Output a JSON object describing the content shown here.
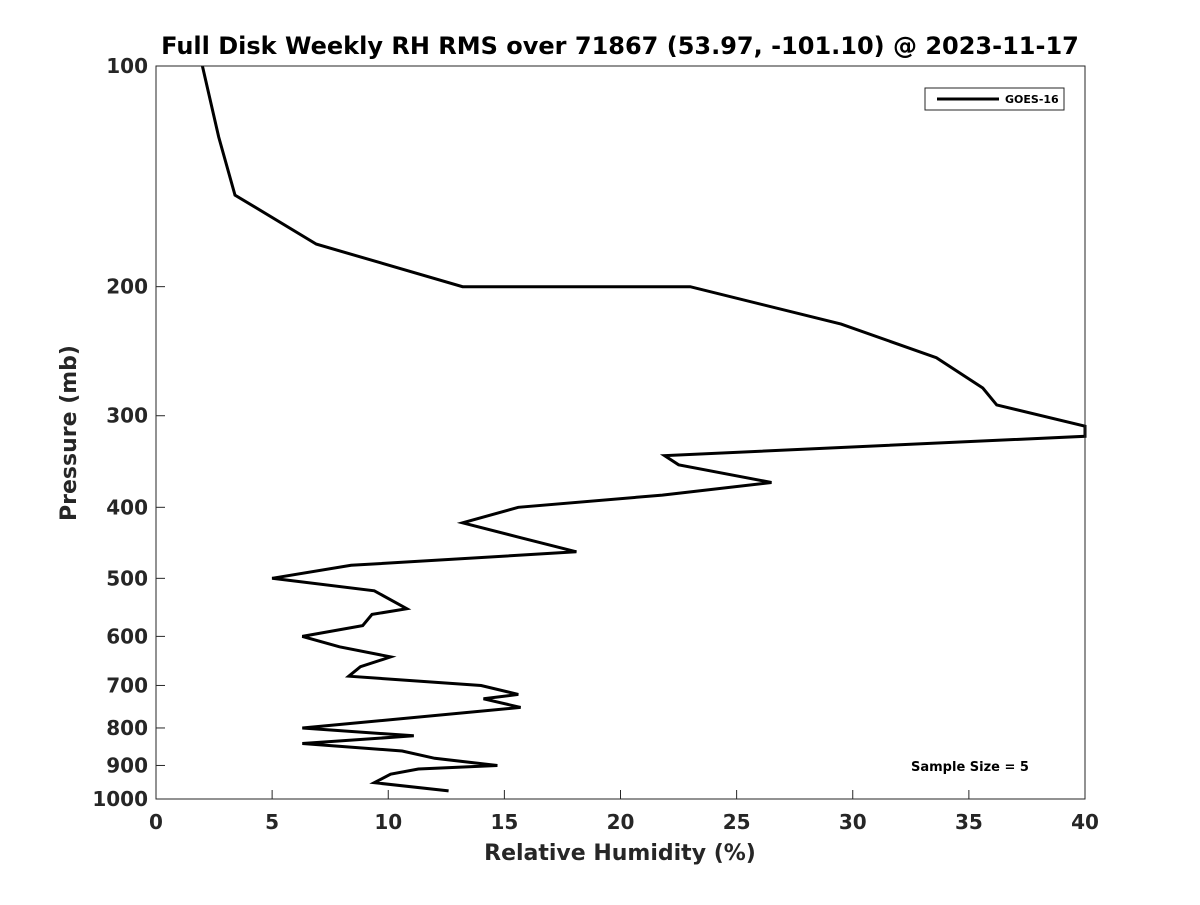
{
  "chart_data": {
    "type": "line",
    "title": "Full Disk Weekly RH RMS over 71867 (53.97, -101.10) @ 2023-11-17",
    "xlabel": "Relative Humidity (%)",
    "ylabel": "Pressure (mb)",
    "xlim": [
      0,
      40
    ],
    "ylim": [
      100,
      1000
    ],
    "y_scale": "log",
    "y_inverted": true,
    "x_ticks": [
      0,
      5,
      10,
      15,
      20,
      25,
      30,
      35,
      40
    ],
    "y_ticks": [
      100,
      200,
      300,
      400,
      500,
      600,
      700,
      800,
      900,
      1000
    ],
    "grid": false,
    "legend_position": "top-right",
    "annotation": "Sample Size = 5",
    "series": [
      {
        "name": "GOES-16",
        "color": "#000000",
        "points": [
          [
            2.0,
            100
          ],
          [
            2.7,
            125
          ],
          [
            3.4,
            150
          ],
          [
            6.9,
            175
          ],
          [
            13.2,
            200
          ],
          [
            23.0,
            200
          ],
          [
            29.5,
            225
          ],
          [
            33.6,
            250
          ],
          [
            35.6,
            275
          ],
          [
            36.2,
            290
          ],
          [
            40.0,
            310
          ],
          [
            40.0,
            320
          ],
          [
            21.9,
            340
          ],
          [
            22.5,
            350
          ],
          [
            26.5,
            370
          ],
          [
            21.8,
            385
          ],
          [
            15.6,
            400
          ],
          [
            13.2,
            420
          ],
          [
            15.7,
            440
          ],
          [
            18.1,
            460
          ],
          [
            8.4,
            480
          ],
          [
            5.0,
            500
          ],
          [
            9.4,
            520
          ],
          [
            10.8,
            550
          ],
          [
            9.3,
            560
          ],
          [
            8.9,
            580
          ],
          [
            6.3,
            600
          ],
          [
            7.9,
            620
          ],
          [
            10.1,
            640
          ],
          [
            8.8,
            660
          ],
          [
            8.3,
            680
          ],
          [
            14.0,
            700
          ],
          [
            15.6,
            720
          ],
          [
            14.1,
            730
          ],
          [
            15.7,
            750
          ],
          [
            6.3,
            800
          ],
          [
            11.1,
            820
          ],
          [
            6.3,
            840
          ],
          [
            10.6,
            860
          ],
          [
            12.0,
            880
          ],
          [
            14.7,
            900
          ],
          [
            11.3,
            910
          ],
          [
            10.1,
            925
          ],
          [
            9.4,
            950
          ],
          [
            12.6,
            975
          ]
        ]
      }
    ]
  }
}
